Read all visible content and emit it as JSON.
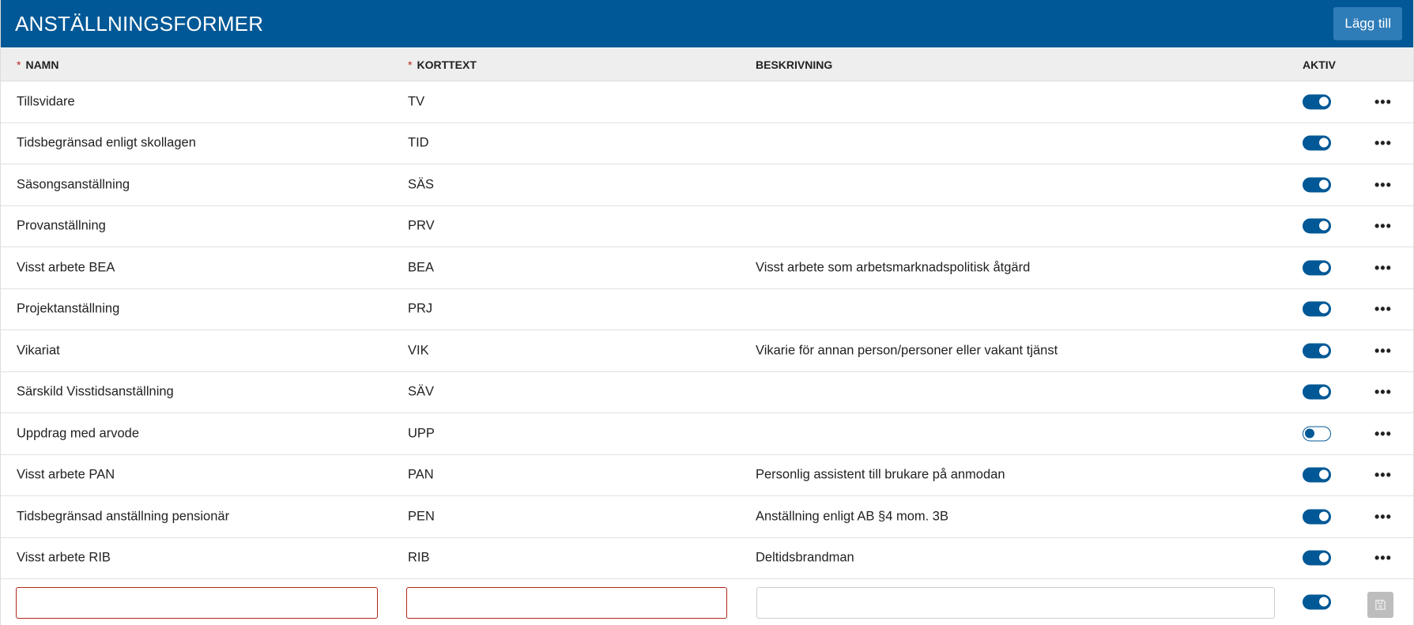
{
  "header": {
    "title": "ANSTÄLLNINGSFORMER",
    "add_label": "Lägg till"
  },
  "columns": {
    "required_mark": "*",
    "name": "NAMN",
    "short": "KORTTEXT",
    "description": "BESKRIVNING",
    "active": "AKTIV"
  },
  "rows": [
    {
      "name": "Tillsvidare",
      "short": "TV",
      "description": "",
      "active": true
    },
    {
      "name": "Tidsbegränsad enligt skollagen",
      "short": "TID",
      "description": "",
      "active": true
    },
    {
      "name": "Säsongsanställning",
      "short": "SÄS",
      "description": "",
      "active": true
    },
    {
      "name": "Provanställning",
      "short": "PRV",
      "description": "",
      "active": true
    },
    {
      "name": "Visst arbete BEA",
      "short": "BEA",
      "description": "Visst arbete som arbetsmarknadspolitisk åtgärd",
      "active": true
    },
    {
      "name": "Projektanställning",
      "short": "PRJ",
      "description": "",
      "active": true
    },
    {
      "name": "Vikariat",
      "short": "VIK",
      "description": "Vikarie för annan person/personer eller vakant tjänst",
      "active": true
    },
    {
      "name": "Särskild Visstidsanställning",
      "short": "SÄV",
      "description": "",
      "active": true
    },
    {
      "name": "Uppdrag med arvode",
      "short": "UPP",
      "description": "",
      "active": false
    },
    {
      "name": "Visst arbete PAN",
      "short": "PAN",
      "description": "Personlig assistent till brukare på anmodan",
      "active": true
    },
    {
      "name": "Tidsbegränsad anställning pensionär",
      "short": "PEN",
      "description": "Anställning enligt AB §4 mom. 3B",
      "active": true
    },
    {
      "name": "Visst arbete RIB",
      "short": "RIB",
      "description": "Deltidsbrandman",
      "active": true
    }
  ],
  "new_row": {
    "name": "",
    "short": "",
    "description": "",
    "active": true
  },
  "icons": {
    "more": "more-horizontal-icon",
    "save": "save-icon"
  },
  "colors": {
    "primary": "#005896",
    "button": "#2f7db8",
    "error": "#b0281a"
  }
}
